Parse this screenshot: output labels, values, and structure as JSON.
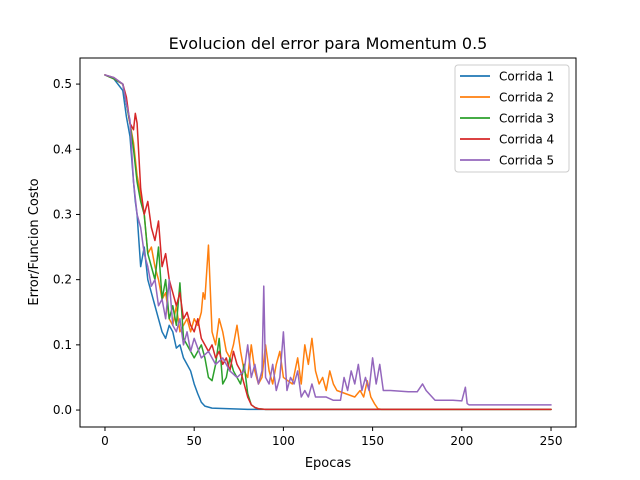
{
  "chart_data": {
    "type": "line",
    "title": "Evolucion del error para Momentum 0.5",
    "xlabel": "Epocas",
    "ylabel": "Error/Funcion Costo",
    "xlim": [
      -14,
      264
    ],
    "ylim": [
      -0.026,
      0.54
    ],
    "xticks": [
      0,
      50,
      100,
      150,
      200,
      250
    ],
    "xtick_labels": [
      "0",
      "50",
      "100",
      "150",
      "200",
      "250"
    ],
    "yticks": [
      0.0,
      0.1,
      0.2,
      0.3,
      0.4,
      0.5
    ],
    "ytick_labels": [
      "0.0",
      "0.1",
      "0.2",
      "0.3",
      "0.4",
      "0.5"
    ],
    "legend_position": "top-right",
    "grid": false,
    "series": [
      {
        "name": "Corrida 1",
        "color": "#1f77b4",
        "x": [
          0,
          5,
          10,
          12,
          14,
          16,
          17,
          18,
          20,
          22,
          24,
          26,
          28,
          30,
          32,
          34,
          36,
          38,
          40,
          42,
          44,
          46,
          48,
          50,
          52,
          54,
          56,
          60,
          70,
          80,
          90,
          100,
          120,
          150,
          200,
          250
        ],
        "y": [
          0.514,
          0.508,
          0.49,
          0.45,
          0.42,
          0.35,
          0.32,
          0.3,
          0.22,
          0.25,
          0.2,
          0.18,
          0.16,
          0.14,
          0.12,
          0.11,
          0.13,
          0.12,
          0.095,
          0.1,
          0.08,
          0.07,
          0.06,
          0.04,
          0.025,
          0.012,
          0.006,
          0.003,
          0.002,
          0.001,
          0.001,
          0.001,
          0.001,
          0.001,
          0.001,
          0.001
        ]
      },
      {
        "name": "Corrida 2",
        "color": "#ff7f0e",
        "x": [
          0,
          5,
          10,
          14,
          16,
          18,
          20,
          22,
          24,
          26,
          28,
          30,
          32,
          34,
          36,
          38,
          40,
          42,
          44,
          46,
          48,
          50,
          52,
          54,
          55,
          56,
          58,
          60,
          62,
          64,
          66,
          68,
          70,
          72,
          74,
          76,
          78,
          80,
          82,
          84,
          86,
          88,
          90,
          92,
          94,
          96,
          98,
          100,
          105,
          108,
          110,
          112,
          114,
          116,
          118,
          120,
          122,
          124,
          126,
          128,
          130,
          135,
          140,
          143,
          145,
          147,
          149,
          151,
          153,
          155,
          160,
          200,
          250
        ],
        "y": [
          0.514,
          0.508,
          0.5,
          0.44,
          0.41,
          0.36,
          0.33,
          0.3,
          0.24,
          0.25,
          0.22,
          0.2,
          0.17,
          0.18,
          0.14,
          0.13,
          0.16,
          0.12,
          0.13,
          0.14,
          0.12,
          0.14,
          0.13,
          0.15,
          0.18,
          0.17,
          0.253,
          0.12,
          0.1,
          0.14,
          0.12,
          0.09,
          0.08,
          0.1,
          0.13,
          0.09,
          0.06,
          0.05,
          0.1,
          0.06,
          0.04,
          0.05,
          0.1,
          0.06,
          0.04,
          0.07,
          0.09,
          0.05,
          0.04,
          0.08,
          0.04,
          0.1,
          0.07,
          0.11,
          0.06,
          0.04,
          0.05,
          0.03,
          0.06,
          0.04,
          0.03,
          0.025,
          0.02,
          0.03,
          0.02,
          0.045,
          0.02,
          0.01,
          0.002,
          0.001,
          0.001,
          0.001,
          0.001
        ]
      },
      {
        "name": "Corrida 3",
        "color": "#2ca02c",
        "x": [
          0,
          5,
          10,
          14,
          16,
          18,
          20,
          22,
          24,
          26,
          28,
          30,
          32,
          34,
          36,
          38,
          40,
          42,
          44,
          46,
          48,
          50,
          52,
          54,
          56,
          58,
          60,
          62,
          64,
          66,
          68,
          70,
          72,
          74,
          76,
          78,
          80,
          82,
          84,
          86,
          90,
          100,
          150,
          200,
          250
        ],
        "y": [
          0.514,
          0.508,
          0.5,
          0.44,
          0.4,
          0.35,
          0.32,
          0.3,
          0.24,
          0.22,
          0.2,
          0.25,
          0.17,
          0.2,
          0.14,
          0.16,
          0.13,
          0.195,
          0.11,
          0.1,
          0.09,
          0.08,
          0.09,
          0.1,
          0.08,
          0.05,
          0.045,
          0.07,
          0.11,
          0.04,
          0.05,
          0.08,
          0.06,
          0.05,
          0.04,
          0.07,
          0.025,
          0.008,
          0.004,
          0.002,
          0.001,
          0.001,
          0.001,
          0.001,
          0.001
        ]
      },
      {
        "name": "Corrida 4",
        "color": "#d62728",
        "x": [
          0,
          5,
          10,
          12,
          14,
          16,
          17,
          18,
          20,
          22,
          24,
          26,
          28,
          30,
          32,
          34,
          36,
          38,
          40,
          42,
          44,
          46,
          48,
          50,
          52,
          54,
          56,
          58,
          60,
          62,
          64,
          66,
          68,
          70,
          72,
          74,
          76,
          78,
          80,
          82,
          84,
          86,
          90,
          100,
          150,
          200,
          250
        ],
        "y": [
          0.514,
          0.51,
          0.5,
          0.48,
          0.44,
          0.43,
          0.455,
          0.44,
          0.34,
          0.3,
          0.32,
          0.28,
          0.26,
          0.29,
          0.22,
          0.24,
          0.2,
          0.18,
          0.16,
          0.18,
          0.14,
          0.15,
          0.13,
          0.12,
          0.14,
          0.11,
          0.1,
          0.09,
          0.1,
          0.08,
          0.09,
          0.07,
          0.08,
          0.06,
          0.09,
          0.07,
          0.06,
          0.04,
          0.02,
          0.008,
          0.004,
          0.002,
          0.001,
          0.001,
          0.001,
          0.001,
          0.001
        ]
      },
      {
        "name": "Corrida 5",
        "color": "#9467bd",
        "x": [
          0,
          5,
          10,
          12,
          14,
          16,
          18,
          20,
          22,
          24,
          26,
          28,
          30,
          32,
          34,
          36,
          38,
          40,
          42,
          44,
          46,
          48,
          50,
          54,
          58,
          62,
          66,
          70,
          74,
          78,
          80,
          82,
          84,
          86,
          88,
          89,
          90,
          92,
          94,
          96,
          98,
          100,
          102,
          104,
          106,
          108,
          110,
          112,
          114,
          116,
          118,
          120,
          124,
          128,
          132,
          134,
          136,
          138,
          140,
          142,
          144,
          146,
          148,
          150,
          152,
          154,
          156,
          160,
          170,
          175,
          178,
          180,
          185,
          195,
          200,
          202,
          203,
          204,
          206,
          210,
          230,
          250
        ],
        "y": [
          0.514,
          0.51,
          0.5,
          0.47,
          0.445,
          0.35,
          0.3,
          0.28,
          0.24,
          0.22,
          0.19,
          0.2,
          0.16,
          0.17,
          0.14,
          0.2,
          0.13,
          0.12,
          0.14,
          0.1,
          0.12,
          0.09,
          0.11,
          0.08,
          0.09,
          0.07,
          0.08,
          0.06,
          0.05,
          0.06,
          0.1,
          0.05,
          0.07,
          0.04,
          0.06,
          0.19,
          0.05,
          0.04,
          0.07,
          0.03,
          0.05,
          0.12,
          0.03,
          0.05,
          0.04,
          0.06,
          0.02,
          0.03,
          0.02,
          0.04,
          0.02,
          0.02,
          0.02,
          0.015,
          0.015,
          0.05,
          0.03,
          0.06,
          0.04,
          0.07,
          0.03,
          0.05,
          0.03,
          0.08,
          0.04,
          0.07,
          0.03,
          0.03,
          0.028,
          0.028,
          0.04,
          0.03,
          0.015,
          0.015,
          0.014,
          0.035,
          0.01,
          0.008,
          0.008,
          0.008,
          0.008,
          0.008
        ]
      }
    ]
  }
}
